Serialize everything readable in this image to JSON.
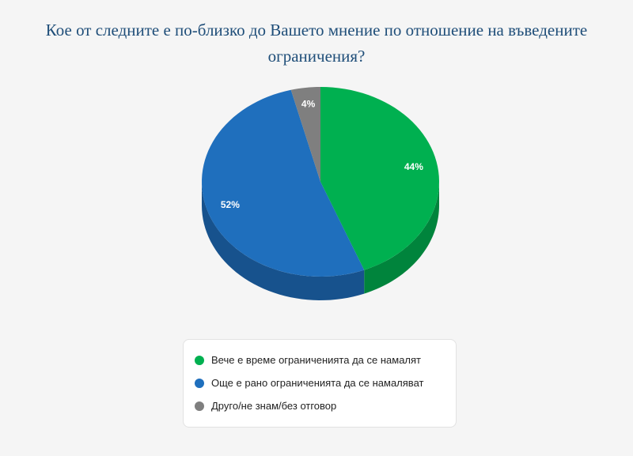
{
  "title_lines": [
    "Кое от следните е по-близко до Вашето мнение по отношение на въведените",
    "ограничения?"
  ],
  "chart_data": {
    "type": "pie",
    "style": "3d",
    "start": "top",
    "direction": "clockwise",
    "legend_position": "bottom",
    "slices": [
      {
        "label": "Вече е време ограниченията да се намалят",
        "value": 44,
        "display": "44%",
        "color": "#00b050",
        "side_color": "#00843c"
      },
      {
        "label": "Още е рано ограниченията да се намаляват",
        "value": 52,
        "display": "52%",
        "color": "#1f6fbd",
        "side_color": "#17528d"
      },
      {
        "label": "Друго/не знам/без отговор",
        "value": 4,
        "display": "4%",
        "color": "#7f7f7f",
        "side_color": "#5e5e5e"
      }
    ]
  }
}
